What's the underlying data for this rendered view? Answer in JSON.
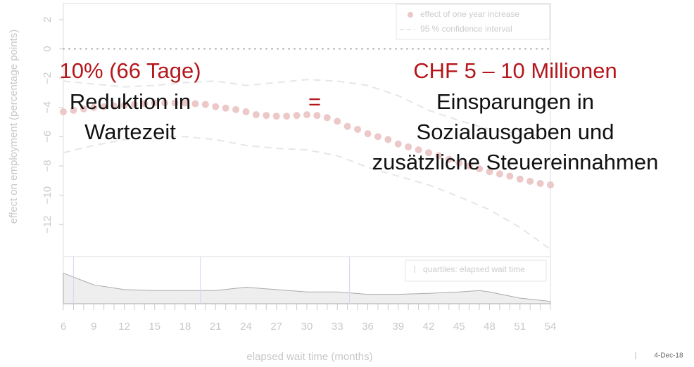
{
  "chart_data": {
    "type": "scatter",
    "xlabel": "elapsed wait time (months)",
    "ylabel": "effect on employment (percentage points)",
    "xlim": [
      6,
      54
    ],
    "ylim": [
      -14.2,
      3.1
    ],
    "xticks": [
      6,
      9,
      12,
      15,
      18,
      21,
      24,
      27,
      30,
      33,
      36,
      39,
      42,
      45,
      48,
      51,
      54
    ],
    "xminorticks": [
      6,
      7,
      8,
      9,
      10,
      11,
      12,
      13,
      14,
      15,
      16,
      17,
      18,
      19,
      20,
      21,
      22,
      23,
      24,
      25,
      26,
      27,
      28,
      29,
      30,
      31,
      32,
      33,
      34,
      35,
      36,
      37,
      38,
      39,
      40,
      41,
      42,
      43,
      44,
      45,
      46,
      47,
      48,
      49,
      50,
      51,
      52,
      53,
      54
    ],
    "yticks": [
      {
        "value": 2,
        "label": "2"
      },
      {
        "value": 0,
        "label": "0"
      },
      {
        "value": -2,
        "label": "−2"
      },
      {
        "value": -4,
        "label": "−4"
      },
      {
        "value": -6,
        "label": "−6"
      },
      {
        "value": -8,
        "label": "−8"
      },
      {
        "value": -10,
        "label": "−10"
      },
      {
        "value": -12,
        "label": "−12"
      }
    ],
    "reference_line": 0,
    "x": [
      6,
      7,
      8,
      9,
      10,
      11,
      12,
      13,
      14,
      15,
      16,
      17,
      18,
      19,
      20,
      21,
      22,
      23,
      24,
      25,
      26,
      27,
      28,
      29,
      30,
      31,
      32,
      33,
      34,
      35,
      36,
      37,
      38,
      39,
      40,
      41,
      42,
      43,
      44,
      45,
      46,
      47,
      48,
      49,
      50,
      51,
      52,
      53,
      54
    ],
    "series": [
      {
        "name": "effect of one year increase",
        "color": "#ecc8c8",
        "values": [
          -4.3,
          -4.2,
          -4.1,
          -4.0,
          -3.95,
          -3.9,
          -3.85,
          -3.8,
          -3.75,
          -3.7,
          -3.7,
          -3.7,
          -3.7,
          -3.75,
          -3.8,
          -3.95,
          -4.05,
          -4.15,
          -4.3,
          -4.5,
          -4.55,
          -4.6,
          -4.6,
          -4.55,
          -4.5,
          -4.55,
          -4.7,
          -4.95,
          -5.3,
          -5.5,
          -5.8,
          -6.0,
          -6.2,
          -6.5,
          -6.7,
          -6.9,
          -7.1,
          -7.3,
          -7.55,
          -7.8,
          -8.0,
          -8.2,
          -8.4,
          -8.55,
          -8.7,
          -8.9,
          -9.05,
          -9.2,
          -9.3
        ]
      },
      {
        "name": "95 % confidence interval",
        "color": "#e6e6e6",
        "x": [
          6,
          9,
          12,
          15,
          18,
          21,
          24,
          27,
          30,
          33,
          36,
          39,
          42,
          45,
          48,
          51,
          54
        ],
        "upper": [
          -2.2,
          -2.4,
          -2.6,
          -2.5,
          -2.3,
          -2.2,
          -2.5,
          -2.3,
          -2.1,
          -2.2,
          -2.5,
          -3.2,
          -4.2,
          -4.9,
          -5.5,
          -5.8,
          -6.0
        ],
        "lower": [
          -7.1,
          -6.6,
          -6.2,
          -6.0,
          -6.0,
          -6.2,
          -6.6,
          -6.8,
          -6.9,
          -7.3,
          -8.1,
          -8.7,
          -9.3,
          -10.1,
          -11.0,
          -12.2,
          -13.7
        ]
      }
    ],
    "density": {
      "name": "quartiles: elapsed wait time",
      "ylim": [
        0,
        1
      ],
      "x": [
        6,
        9,
        12,
        15,
        18,
        21,
        24,
        27,
        30,
        33,
        36,
        39,
        42,
        45,
        47,
        48,
        51,
        54
      ],
      "values": [
        0.65,
        0.4,
        0.3,
        0.28,
        0.28,
        0.28,
        0.35,
        0.3,
        0.25,
        0.25,
        0.2,
        0.2,
        0.22,
        0.25,
        0.28,
        0.25,
        0.12,
        0.05
      ],
      "quartiles": [
        7,
        19.5,
        34.2
      ]
    },
    "annotations": {
      "left_head": "10% (66 Tage)",
      "left_line1": "Reduktion in",
      "left_line2": "Wartezeit",
      "equals": "=",
      "right_head": "CHF 5 – 10 Millionen",
      "right_line1": "Einsparungen in",
      "right_line2": "Sozialausgaben und",
      "right_line3": "zusätzliche Steuereinnahmen"
    },
    "footer_date": "4-Dec-18"
  }
}
